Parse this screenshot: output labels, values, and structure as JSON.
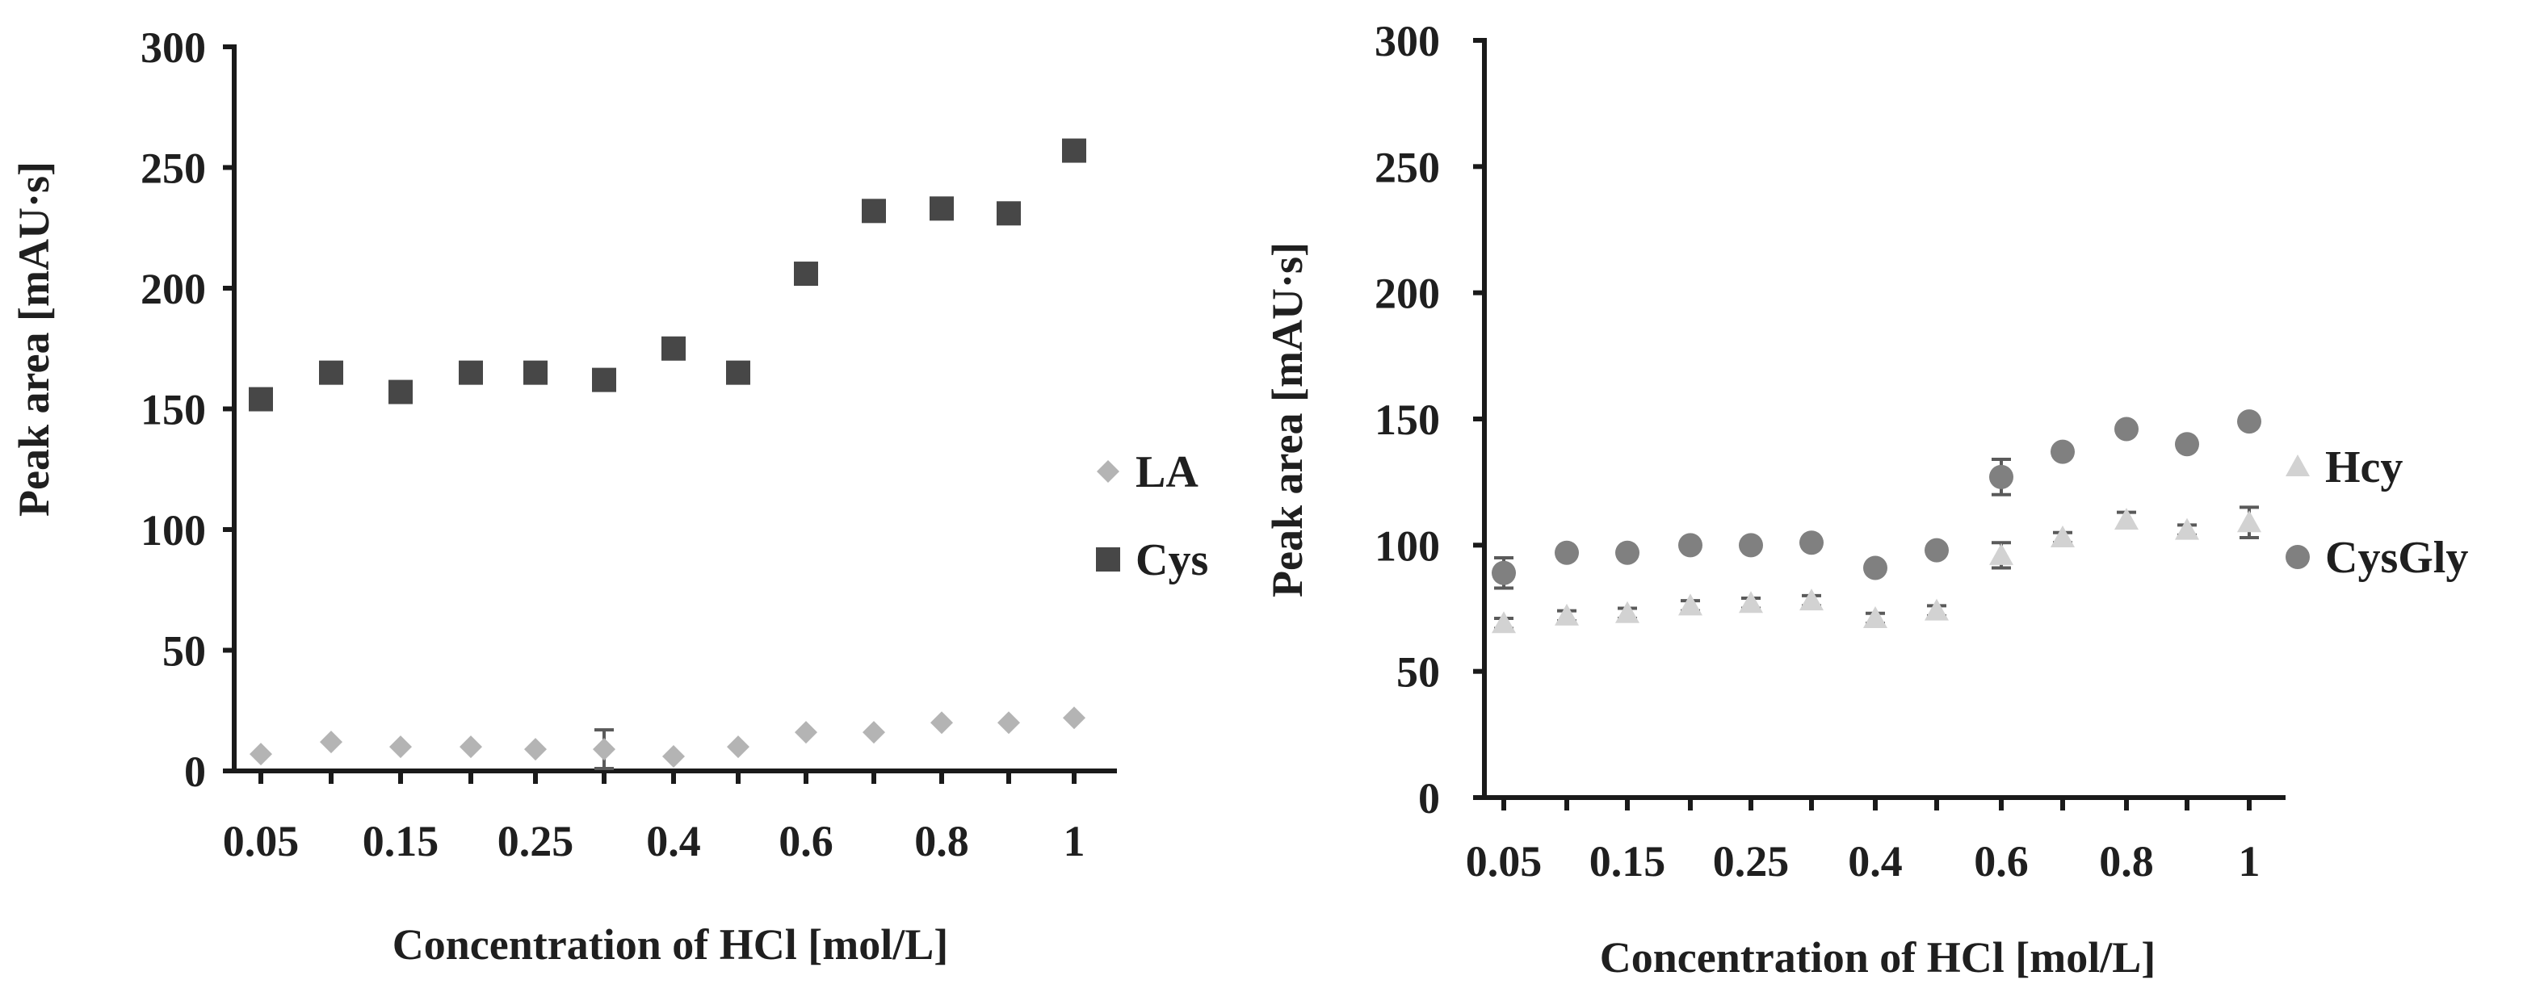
{
  "chart_data": [
    {
      "type": "scatter",
      "title": "",
      "xlabel": "Concentration of HCl [mol/L]",
      "ylabel": "Peak area [mAU·s]",
      "ylim": [
        0,
        300
      ],
      "yticks": [
        "0",
        "50",
        "100",
        "150",
        "200",
        "250",
        "300"
      ],
      "categories": [
        "0.05",
        "0.1",
        "0.15",
        "0.2",
        "0.25",
        "0.3",
        "0.4",
        "0.5",
        "0.6",
        "0.7",
        "0.8",
        "0.9",
        "1"
      ],
      "tick_labels": [
        "0.05",
        "0.15",
        "0.25",
        "0.4",
        "0.6",
        "0.8",
        "1"
      ],
      "legend_position": "right",
      "series": [
        {
          "name": "LA",
          "marker": "diamond",
          "color": "#b4b4b4",
          "values": [
            7,
            12,
            10,
            10,
            9,
            9,
            6,
            10,
            16,
            16,
            20,
            20,
            22
          ],
          "errors": [
            0,
            0,
            0,
            0,
            0,
            8,
            0,
            0,
            0,
            0,
            0,
            0,
            0
          ]
        },
        {
          "name": "Cys",
          "marker": "square",
          "color": "#474747",
          "values": [
            154,
            165,
            157,
            165,
            165,
            162,
            175,
            165,
            206,
            232,
            233,
            231,
            257
          ],
          "errors": [
            3,
            0,
            0,
            0,
            0,
            0,
            0,
            3,
            3,
            0,
            0,
            0,
            0
          ]
        }
      ]
    },
    {
      "type": "scatter",
      "title": "",
      "xlabel": "Concentration of HCl [mol/L]",
      "ylabel": "Peak area [mAU·s]",
      "ylim": [
        0,
        300
      ],
      "yticks": [
        "0",
        "50",
        "100",
        "150",
        "200",
        "250",
        "300"
      ],
      "categories": [
        "0.05",
        "0.1",
        "0.15",
        "0.2",
        "0.25",
        "0.3",
        "0.4",
        "0.5",
        "0.6",
        "0.7",
        "0.8",
        "0.9",
        "1"
      ],
      "tick_labels": [
        "0.05",
        "0.15",
        "0.25",
        "0.4",
        "0.6",
        "0.8",
        "1"
      ],
      "legend_position": "right",
      "series": [
        {
          "name": "Hcy",
          "marker": "triangle",
          "color": "#d2d2d2",
          "values": [
            69,
            72,
            73,
            76,
            77,
            78,
            71,
            74,
            96,
            103,
            110,
            106,
            109
          ],
          "errors": [
            2,
            2,
            2,
            2,
            2,
            2,
            2,
            2,
            5,
            2,
            3,
            2,
            6
          ]
        },
        {
          "name": "CysGly",
          "marker": "circle",
          "color": "#808080",
          "values": [
            89,
            97,
            97,
            100,
            100,
            101,
            91,
            98,
            127,
            137,
            146,
            140,
            149
          ],
          "errors": [
            6,
            0,
            0,
            0,
            0,
            0,
            0,
            0,
            7,
            0,
            0,
            0,
            0
          ]
        }
      ]
    }
  ]
}
